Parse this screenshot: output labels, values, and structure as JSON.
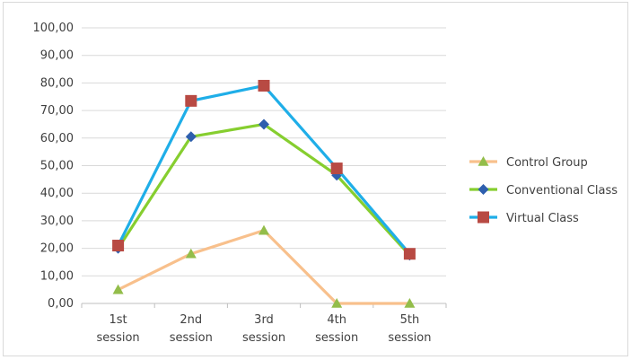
{
  "chart_data": {
    "type": "line",
    "categories": [
      [
        "1st",
        "session"
      ],
      [
        "2nd",
        "session"
      ],
      [
        "3rd",
        "session"
      ],
      [
        "4th",
        "session"
      ],
      [
        "5th",
        "session"
      ]
    ],
    "series": [
      {
        "name": "Control Group",
        "values": [
          5,
          18,
          26.5,
          0,
          0
        ],
        "line_color": "#f8c08c",
        "marker": "triangle",
        "marker_color": "#93bd4a"
      },
      {
        "name": "Conventional Class",
        "values": [
          20,
          60.5,
          65,
          46.5,
          17.5
        ],
        "line_color": "#86ce2f",
        "marker": "diamond",
        "marker_color": "#2e5fae"
      },
      {
        "name": "Virtual Class",
        "values": [
          21,
          73.5,
          79,
          49,
          18
        ],
        "line_color": "#1faee8",
        "marker": "square",
        "marker_color": "#b84a43"
      }
    ],
    "yticks": [
      "0,00",
      "10,00",
      "20,00",
      "30,00",
      "40,00",
      "50,00",
      "60,00",
      "70,00",
      "80,00",
      "90,00",
      "100,00"
    ],
    "ylim": [
      0,
      100
    ],
    "grid": true,
    "legend": "right",
    "title": "",
    "xlabel": "",
    "ylabel": ""
  }
}
